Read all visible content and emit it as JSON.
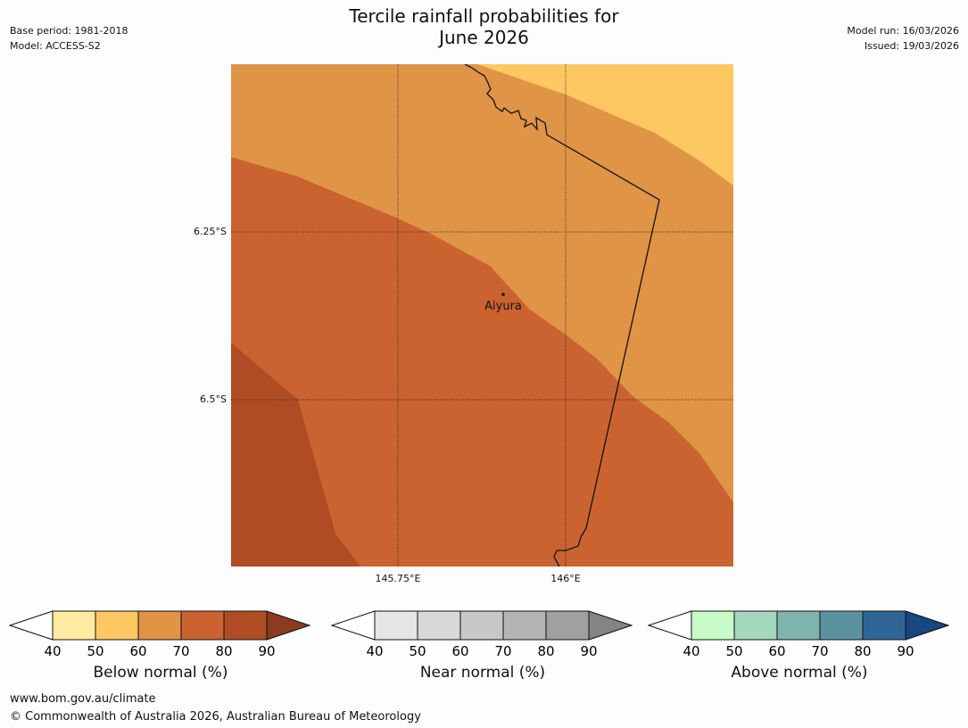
{
  "title_line1": "Tercile rainfall probabilities for",
  "title_line2": "June 2026",
  "meta_left": {
    "base_period": "Base period: 1981-2018",
    "model": "Model: ACCESS-S2"
  },
  "meta_right": {
    "model_run": "Model run: 16/03/2026",
    "issued": "Issued: 19/03/2026"
  },
  "map": {
    "lat_labels": [
      "6.25°S",
      "6.5°S"
    ],
    "lon_labels": [
      "145.75°E",
      "146°E"
    ],
    "place": {
      "name": "Aiyura"
    },
    "colors": {
      "c40_50": "#fdc762",
      "c50_60": "#e09446",
      "c60_70": "#cb6330",
      "c70_80": "#b04c24"
    }
  },
  "colorbars": [
    {
      "title": "Below normal (%)",
      "ticks": [
        "40",
        "50",
        "60",
        "70",
        "80",
        "90"
      ],
      "colors": [
        "#ffeca0",
        "#fdc762",
        "#e09446",
        "#cb6330",
        "#b04c24"
      ],
      "over": "#8a3b20"
    },
    {
      "title": "Near normal (%)",
      "ticks": [
        "40",
        "50",
        "60",
        "70",
        "80",
        "90"
      ],
      "colors": [
        "#e6e6e6",
        "#d8d8d8",
        "#c8c8c8",
        "#b4b4b4",
        "#a0a0a0"
      ],
      "over": "#848484"
    },
    {
      "title": "Above normal (%)",
      "ticks": [
        "40",
        "50",
        "60",
        "70",
        "80",
        "90"
      ],
      "colors": [
        "#c8fbc8",
        "#a3d8bc",
        "#7fb4ad",
        "#5b92a0",
        "#306597"
      ],
      "over": "#16477f"
    }
  ],
  "footer": {
    "url": "www.bom.gov.au/climate",
    "copyright": "© Commonwealth of Australia 2026, Australian Bureau of Meteorology"
  }
}
